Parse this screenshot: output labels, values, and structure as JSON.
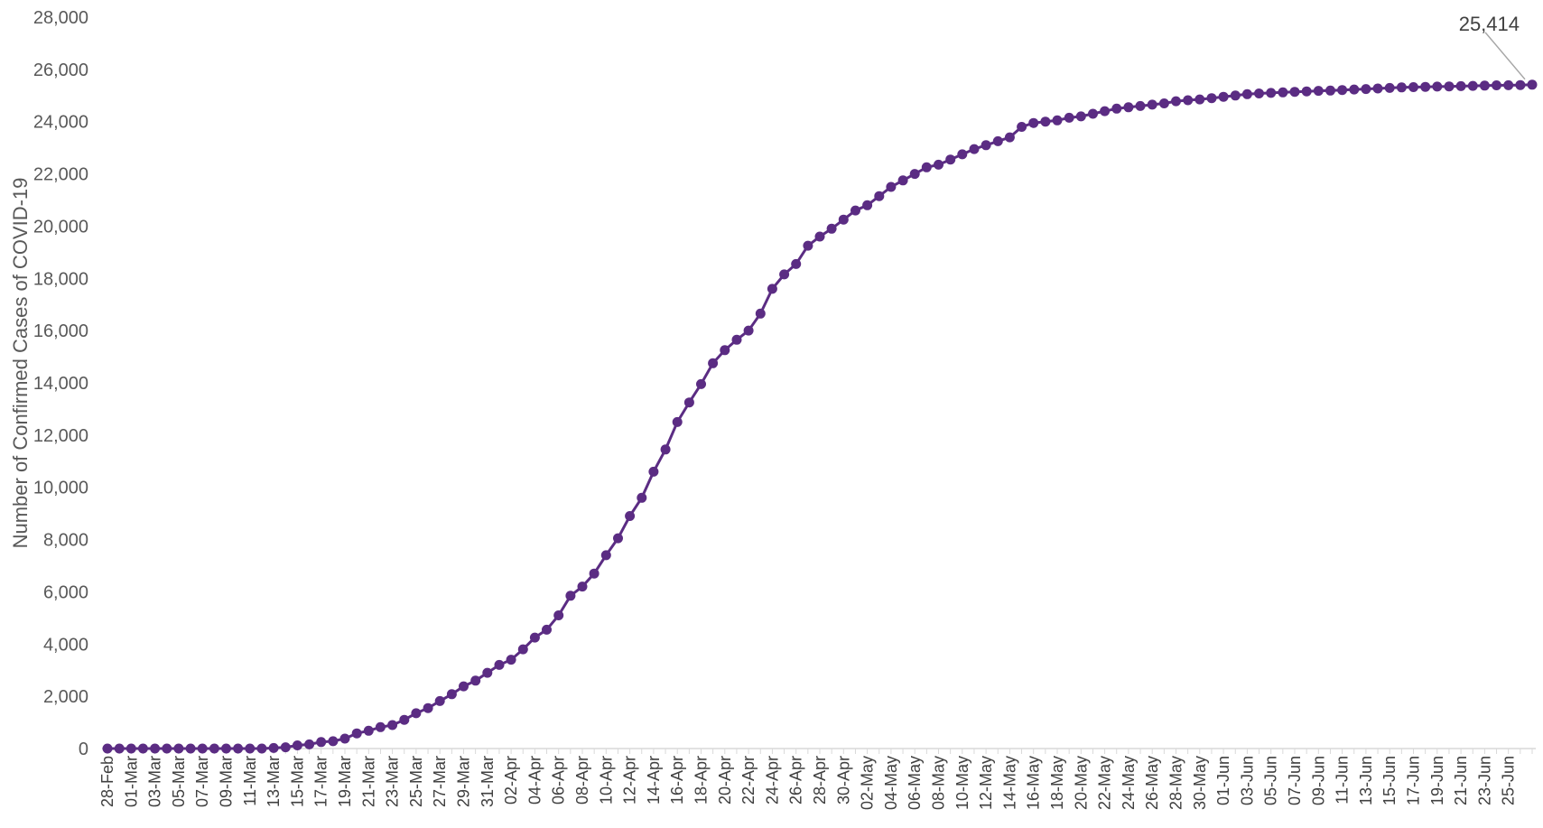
{
  "chart_data": {
    "type": "line",
    "title": "",
    "xlabel": "",
    "ylabel": "Number of Confirmed Cases of COVID-19",
    "ylim": [
      0,
      28000
    ],
    "yticks": [
      0,
      2000,
      4000,
      6000,
      8000,
      10000,
      12000,
      14000,
      16000,
      18000,
      20000,
      22000,
      24000,
      26000,
      28000
    ],
    "ytick_labels": [
      "0",
      "2,000",
      "4,000",
      "6,000",
      "8,000",
      "10,000",
      "12,000",
      "14,000",
      "16,000",
      "18,000",
      "20,000",
      "22,000",
      "24,000",
      "26,000",
      "28,000"
    ],
    "grid": false,
    "legend": "none",
    "x_tick_labels": [
      "28-Feb",
      "01-Mar",
      "03-Mar",
      "05-Mar",
      "07-Mar",
      "09-Mar",
      "11-Mar",
      "13-Mar",
      "15-Mar",
      "17-Mar",
      "19-Mar",
      "21-Mar",
      "23-Mar",
      "25-Mar",
      "27-Mar",
      "29-Mar",
      "31-Mar",
      "02-Apr",
      "04-Apr",
      "06-Apr",
      "08-Apr",
      "10-Apr",
      "12-Apr",
      "14-Apr",
      "16-Apr",
      "18-Apr",
      "20-Apr",
      "22-Apr",
      "24-Apr",
      "26-Apr",
      "28-Apr",
      "30-Apr",
      "02-May",
      "04-May",
      "06-May",
      "08-May",
      "10-May",
      "12-May",
      "14-May",
      "16-May",
      "18-May",
      "20-May",
      "22-May",
      "24-May",
      "26-May",
      "28-May",
      "30-May",
      "01-Jun",
      "03-Jun",
      "05-Jun",
      "07-Jun",
      "09-Jun",
      "11-Jun",
      "13-Jun",
      "15-Jun",
      "17-Jun",
      "19-Jun",
      "21-Jun",
      "23-Jun",
      "25-Jun"
    ],
    "colors": {
      "series": "#5b2c83",
      "leader": "#a6a6a6",
      "axis": "#d9d9d9"
    },
    "series": [
      {
        "x_start": "28-Feb",
        "x_end": "26-Jun",
        "values": [
          1,
          1,
          1,
          1,
          1,
          1,
          1,
          1,
          1,
          1,
          1,
          1,
          1,
          1,
          20,
          50,
          120,
          160,
          250,
          280,
          380,
          580,
          680,
          820,
          900,
          1100,
          1350,
          1550,
          1820,
          2080,
          2380,
          2600,
          2900,
          3200,
          3400,
          3800,
          4250,
          4550,
          5100,
          5850,
          6200,
          6700,
          7400,
          8050,
          8900,
          9600,
          10600,
          11450,
          12500,
          13250,
          13950,
          14750,
          15250,
          15650,
          16000,
          16650,
          17600,
          18150,
          18550,
          19250,
          19600,
          19900,
          20250,
          20600,
          20800,
          21150,
          21500,
          21750,
          22000,
          22250,
          22350,
          22550,
          22750,
          22950,
          23100,
          23250,
          23400,
          23800,
          23950,
          24000,
          24050,
          24150,
          24200,
          24300,
          24400,
          24500,
          24550,
          24600,
          24650,
          24700,
          24780,
          24820,
          24850,
          24900,
          24950,
          25000,
          25050,
          25080,
          25100,
          25120,
          25140,
          25160,
          25180,
          25190,
          25210,
          25230,
          25250,
          25270,
          25290,
          25310,
          25320,
          25330,
          25340,
          25350,
          25360,
          25370,
          25380,
          25390,
          25395,
          25400,
          25414
        ]
      }
    ],
    "annotations": [
      {
        "text": "25,414",
        "target": "last-point"
      }
    ]
  }
}
